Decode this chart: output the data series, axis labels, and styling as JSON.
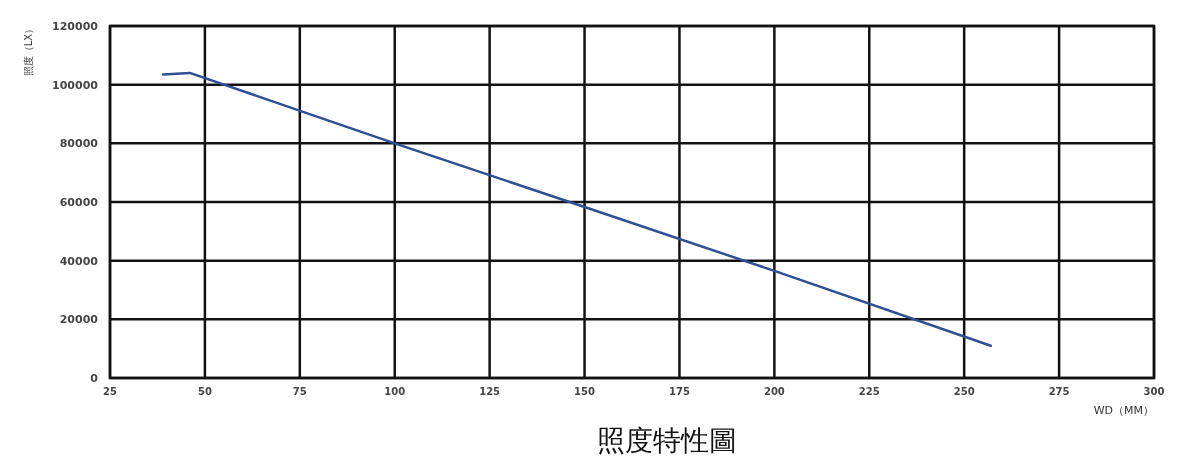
{
  "chart_data": {
    "type": "line",
    "title": "照度特性圖",
    "xlabel": "WD（MM）",
    "ylabel": "照度（LX）",
    "x": [
      39,
      46,
      100,
      150,
      200,
      257
    ],
    "series": [
      {
        "color": "#2f4f94",
        "values": [
          103500,
          104000,
          80000,
          58300,
          36500,
          11000
        ]
      }
    ],
    "xlim": [
      25,
      300
    ],
    "xticks": [
      25,
      50,
      75,
      100,
      125,
      150,
      175,
      200,
      225,
      250,
      275,
      300
    ],
    "ylim": [
      0,
      120000
    ],
    "yticks": [
      0,
      20000,
      40000,
      60000,
      80000,
      100000,
      120000
    ],
    "grid": true,
    "marker": "none",
    "line_style": "solid"
  }
}
